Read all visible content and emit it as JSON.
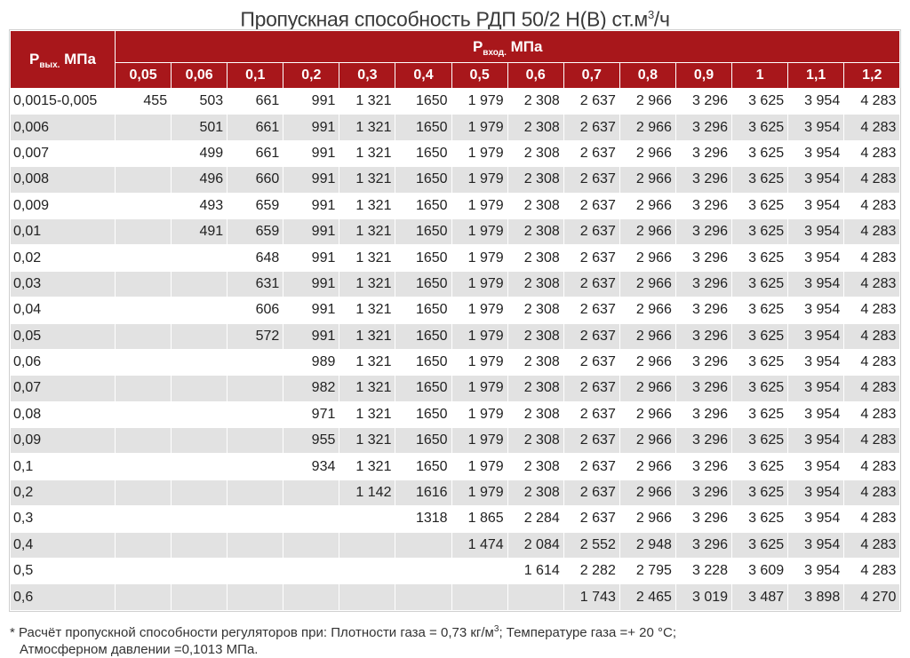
{
  "title": {
    "text": "Пропускная способность РДП 50/2 Н(В) ст.м",
    "sup": "3",
    "tail": "/ч"
  },
  "header": {
    "row_label_main": "P",
    "row_label_sub": "вых.",
    "row_label_unit": " МПа",
    "col_group_main": "P",
    "col_group_sub": "вход.",
    "col_group_unit": " МПа",
    "columns": [
      "0,05",
      "0,06",
      "0,1",
      "0,2",
      "0,3",
      "0,4",
      "0,5",
      "0,6",
      "0,7",
      "0,8",
      "0,9",
      "1",
      "1,1",
      "1,2"
    ]
  },
  "rows": [
    {
      "label": "0,0015-0,005",
      "values": [
        "455",
        "503",
        "661",
        "991",
        "1 321",
        "1650",
        "1 979",
        "2 308",
        "2 637",
        "2 966",
        "3 296",
        "3 625",
        "3 954",
        "4 283"
      ]
    },
    {
      "label": "0,006",
      "values": [
        "",
        "501",
        "661",
        "991",
        "1 321",
        "1650",
        "1 979",
        "2 308",
        "2 637",
        "2 966",
        "3 296",
        "3 625",
        "3 954",
        "4 283"
      ]
    },
    {
      "label": "0,007",
      "values": [
        "",
        "499",
        "661",
        "991",
        "1 321",
        "1650",
        "1 979",
        "2 308",
        "2 637",
        "2 966",
        "3 296",
        "3 625",
        "3 954",
        "4 283"
      ]
    },
    {
      "label": "0,008",
      "values": [
        "",
        "496",
        "660",
        "991",
        "1 321",
        "1650",
        "1 979",
        "2 308",
        "2 637",
        "2 966",
        "3 296",
        "3 625",
        "3 954",
        "4 283"
      ]
    },
    {
      "label": "0,009",
      "values": [
        "",
        "493",
        "659",
        "991",
        "1 321",
        "1650",
        "1 979",
        "2 308",
        "2 637",
        "2 966",
        "3 296",
        "3 625",
        "3 954",
        "4 283"
      ]
    },
    {
      "label": "0,01",
      "values": [
        "",
        "491",
        "659",
        "991",
        "1 321",
        "1650",
        "1 979",
        "2 308",
        "2 637",
        "2 966",
        "3 296",
        "3 625",
        "3 954",
        "4 283"
      ]
    },
    {
      "label": "0,02",
      "values": [
        "",
        "",
        "648",
        "991",
        "1 321",
        "1650",
        "1 979",
        "2 308",
        "2 637",
        "2 966",
        "3 296",
        "3 625",
        "3 954",
        "4 283"
      ]
    },
    {
      "label": "0,03",
      "values": [
        "",
        "",
        "631",
        "991",
        "1 321",
        "1650",
        "1 979",
        "2 308",
        "2 637",
        "2 966",
        "3 296",
        "3 625",
        "3 954",
        "4 283"
      ]
    },
    {
      "label": "0,04",
      "values": [
        "",
        "",
        "606",
        "991",
        "1 321",
        "1650",
        "1 979",
        "2 308",
        "2 637",
        "2 966",
        "3 296",
        "3 625",
        "3 954",
        "4 283"
      ]
    },
    {
      "label": "0,05",
      "values": [
        "",
        "",
        "572",
        "991",
        "1 321",
        "1650",
        "1 979",
        "2 308",
        "2 637",
        "2 966",
        "3 296",
        "3 625",
        "3 954",
        "4 283"
      ]
    },
    {
      "label": "0,06",
      "values": [
        "",
        "",
        "",
        "989",
        "1 321",
        "1650",
        "1 979",
        "2 308",
        "2 637",
        "2 966",
        "3 296",
        "3 625",
        "3 954",
        "4 283"
      ]
    },
    {
      "label": "0,07",
      "values": [
        "",
        "",
        "",
        "982",
        "1 321",
        "1650",
        "1 979",
        "2 308",
        "2 637",
        "2 966",
        "3 296",
        "3 625",
        "3 954",
        "4 283"
      ]
    },
    {
      "label": "0,08",
      "values": [
        "",
        "",
        "",
        "971",
        "1 321",
        "1650",
        "1 979",
        "2 308",
        "2 637",
        "2 966",
        "3 296",
        "3 625",
        "3 954",
        "4 283"
      ]
    },
    {
      "label": "0,09",
      "values": [
        "",
        "",
        "",
        "955",
        "1 321",
        "1650",
        "1 979",
        "2 308",
        "2 637",
        "2 966",
        "3 296",
        "3 625",
        "3 954",
        "4 283"
      ]
    },
    {
      "label": "0,1",
      "values": [
        "",
        "",
        "",
        "934",
        "1 321",
        "1650",
        "1 979",
        "2 308",
        "2 637",
        "2 966",
        "3 296",
        "3 625",
        "3 954",
        "4 283"
      ]
    },
    {
      "label": "0,2",
      "values": [
        "",
        "",
        "",
        "",
        "1 142",
        "1616",
        "1 979",
        "2 308",
        "2 637",
        "2 966",
        "3 296",
        "3 625",
        "3 954",
        "4 283"
      ]
    },
    {
      "label": "0,3",
      "values": [
        "",
        "",
        "",
        "",
        "",
        "1318",
        "1 865",
        "2 284",
        "2 637",
        "2 966",
        "3 296",
        "3 625",
        "3 954",
        "4 283"
      ]
    },
    {
      "label": "0,4",
      "values": [
        "",
        "",
        "",
        "",
        "",
        "",
        "1 474",
        "2 084",
        "2 552",
        "2 948",
        "3 296",
        "3 625",
        "3 954",
        "4 283"
      ]
    },
    {
      "label": "0,5",
      "values": [
        "",
        "",
        "",
        "",
        "",
        "",
        "",
        "1 614",
        "2 282",
        "2 795",
        "3 228",
        "3 609",
        "3 954",
        "4 283"
      ]
    },
    {
      "label": "0,6",
      "values": [
        "",
        "",
        "",
        "",
        "",
        "",
        "",
        "",
        "1 743",
        "2 465",
        "3 019",
        "3 487",
        "3 898",
        "4 270"
      ]
    }
  ],
  "footnote": {
    "line1_a": "* Расчёт пропускной способности регуляторов при: Плотности газа = 0,73 кг/м",
    "line1_sup": "3",
    "line1_b": "; Температуре газа =+ 20 °С;",
    "line2": "Атмосферном давлении =0,1013 МПа."
  },
  "colors": {
    "header_bg": "#a8171b",
    "row_alt_bg": "#e2e2e2"
  }
}
